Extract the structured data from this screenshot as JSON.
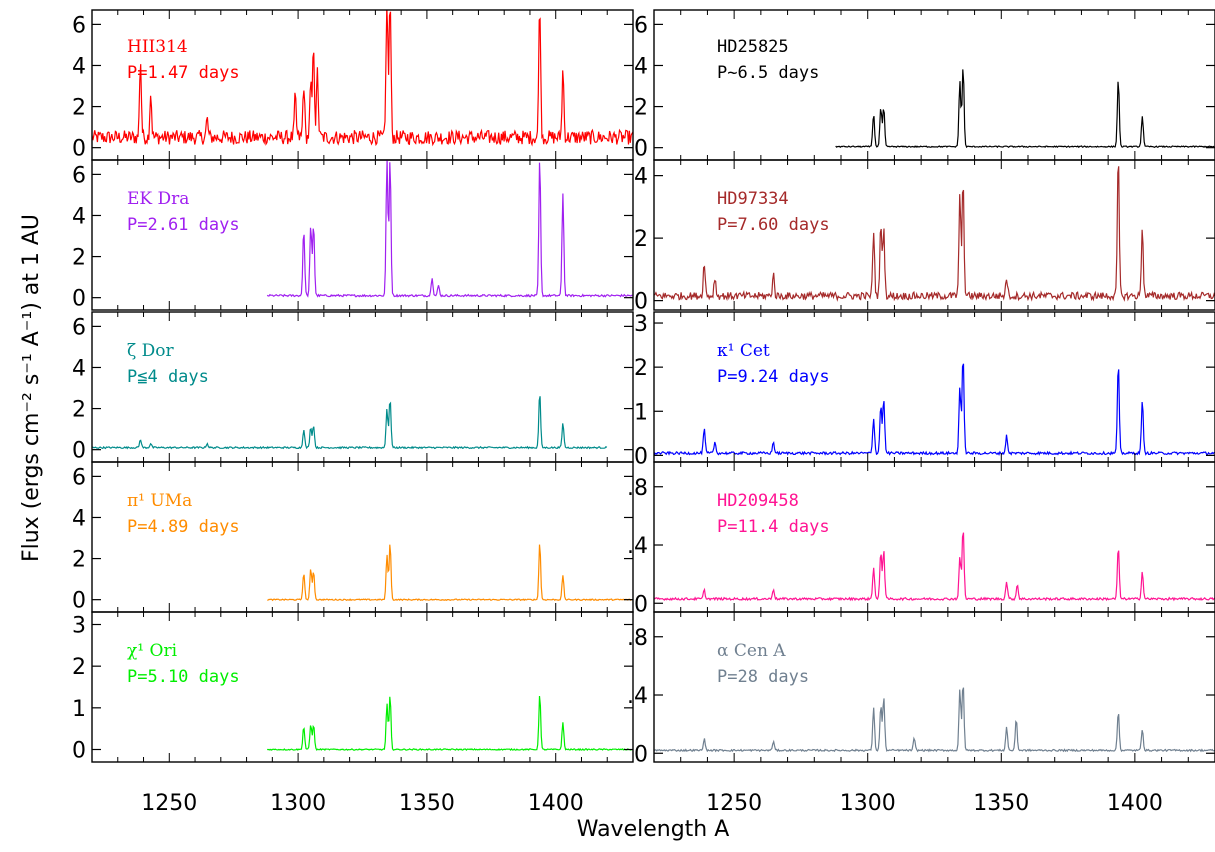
{
  "figure": {
    "ylabel": "Flux (ergs cm⁻² s⁻¹ A⁻¹) at 1 AU",
    "xlabel": "Wavelength A",
    "x_ticks": [
      "1250",
      "1300",
      "1350",
      "1400"
    ]
  },
  "chart_data": [
    {
      "type": "line",
      "column": "left",
      "row": 0,
      "name": "HII314",
      "period": "P=1.47 days",
      "color": "#ff0000",
      "ylim": [
        -0.6,
        6.7
      ],
      "yticks": [
        "0",
        "2",
        "4",
        "6"
      ],
      "x_range": [
        1220,
        1430
      ],
      "noise_amp": 0.35,
      "baseline": 0.5,
      "lines": [
        [
          1238.8,
          3.8
        ],
        [
          1242.8,
          2.2
        ],
        [
          1264.7,
          0.9
        ],
        [
          1298.9,
          2.0
        ],
        [
          1302.2,
          2.6
        ],
        [
          1304.9,
          2.5
        ],
        [
          1306.0,
          4.5
        ],
        [
          1307.5,
          3.2
        ],
        [
          1334.5,
          6.7
        ],
        [
          1335.7,
          6.7
        ],
        [
          1393.8,
          6.7
        ],
        [
          1402.8,
          3.3
        ]
      ]
    },
    {
      "type": "line",
      "column": "left",
      "row": 1,
      "name": "EK Dra",
      "period": "P=2.61 days",
      "color": "#a020f0",
      "ylim": [
        -0.6,
        6.7
      ],
      "yticks": [
        "0",
        "2",
        "4",
        "6"
      ],
      "x_range": [
        1288,
        1430
      ],
      "noise_amp": 0.05,
      "baseline": 0.1,
      "lines": [
        [
          1302.2,
          3.2
        ],
        [
          1304.9,
          3.4
        ],
        [
          1306.0,
          3.5
        ],
        [
          1334.5,
          6.7
        ],
        [
          1335.7,
          6.7
        ],
        [
          1352.0,
          0.9
        ],
        [
          1354.5,
          0.5
        ],
        [
          1393.8,
          6.7
        ],
        [
          1402.8,
          5.0
        ]
      ]
    },
    {
      "type": "line",
      "column": "left",
      "row": 2,
      "name": "ζ Dor",
      "period": "P≦4 days",
      "color": "#008b8b",
      "ylim": [
        -0.6,
        6.7
      ],
      "yticks": [
        "0",
        "2",
        "4",
        "6"
      ],
      "x_range": [
        1220,
        1420
      ],
      "noise_amp": 0.04,
      "baseline": 0.1,
      "lines": [
        [
          1238.8,
          0.4
        ],
        [
          1242.8,
          0.2
        ],
        [
          1264.7,
          0.2
        ],
        [
          1302.2,
          0.9
        ],
        [
          1304.9,
          1.0
        ],
        [
          1306.0,
          1.1
        ],
        [
          1334.5,
          1.9
        ],
        [
          1335.7,
          2.4
        ],
        [
          1393.8,
          2.7
        ],
        [
          1402.8,
          1.2
        ]
      ]
    },
    {
      "type": "line",
      "column": "left",
      "row": 3,
      "name": "π¹ UMa",
      "period": "P=4.89 days",
      "color": "#ff8c00",
      "ylim": [
        -0.6,
        6.7
      ],
      "yticks": [
        "0",
        "2",
        "4",
        "6"
      ],
      "x_range": [
        1288,
        1430
      ],
      "noise_amp": 0.03,
      "baseline": 0.0,
      "lines": [
        [
          1302.2,
          1.3
        ],
        [
          1304.9,
          1.5
        ],
        [
          1306.0,
          1.4
        ],
        [
          1334.5,
          2.2
        ],
        [
          1335.7,
          2.8
        ],
        [
          1393.8,
          2.8
        ],
        [
          1402.8,
          1.2
        ]
      ]
    },
    {
      "type": "line",
      "column": "left",
      "row": 4,
      "name": "χ¹ Ori",
      "period": "P=5.10 days",
      "color": "#00ee00",
      "ylim": [
        -0.3,
        3.3
      ],
      "yticks": [
        "0",
        "1",
        "2",
        "3"
      ],
      "x_range": [
        1288,
        1430
      ],
      "noise_amp": 0.015,
      "baseline": 0.0,
      "lines": [
        [
          1302.2,
          0.55
        ],
        [
          1304.9,
          0.6
        ],
        [
          1306.0,
          0.6
        ],
        [
          1334.5,
          1.1
        ],
        [
          1335.7,
          1.3
        ],
        [
          1393.8,
          1.35
        ],
        [
          1402.8,
          0.65
        ]
      ]
    },
    {
      "type": "line",
      "column": "right",
      "row": 0,
      "name": "HD25825",
      "period": "P~6.5 days",
      "color": "#000000",
      "ylim": [
        -0.6,
        6.7
      ],
      "yticks": [
        "0",
        "2",
        "4",
        "6"
      ],
      "x_range": [
        1288,
        1430
      ],
      "noise_amp": 0.03,
      "baseline": 0.05,
      "lines": [
        [
          1302.2,
          1.6
        ],
        [
          1304.9,
          1.9
        ],
        [
          1306.0,
          1.9
        ],
        [
          1334.5,
          3.2
        ],
        [
          1335.7,
          3.9
        ],
        [
          1393.8,
          3.3
        ],
        [
          1402.8,
          1.5
        ]
      ]
    },
    {
      "type": "line",
      "column": "right",
      "row": 1,
      "name": "HD97334",
      "period": "P=7.60 days",
      "color": "#a52a2a",
      "ylim": [
        -0.3,
        4.5
      ],
      "yticks": [
        "0",
        "2",
        "4"
      ],
      "x_range": [
        1220,
        1430
      ],
      "noise_amp": 0.12,
      "baseline": 0.15,
      "lines": [
        [
          1238.8,
          1.1
        ],
        [
          1242.8,
          0.6
        ],
        [
          1264.7,
          0.7
        ],
        [
          1302.2,
          2.1
        ],
        [
          1304.9,
          2.3
        ],
        [
          1306.0,
          2.2
        ],
        [
          1334.5,
          3.2
        ],
        [
          1335.7,
          3.7
        ],
        [
          1352.0,
          0.6
        ],
        [
          1393.8,
          4.5
        ],
        [
          1402.8,
          2.2
        ]
      ]
    },
    {
      "type": "line",
      "column": "right",
      "row": 2,
      "name": "κ¹ Cet",
      "period": "P=9.24 days",
      "color": "#0000ff",
      "ylim": [
        -0.15,
        3.25
      ],
      "yticks": [
        "0",
        "1",
        "2",
        "3"
      ],
      "x_range": [
        1220,
        1430
      ],
      "noise_amp": 0.03,
      "baseline": 0.05,
      "lines": [
        [
          1238.8,
          0.55
        ],
        [
          1242.8,
          0.25
        ],
        [
          1264.7,
          0.25
        ],
        [
          1302.2,
          0.8
        ],
        [
          1304.9,
          1.1
        ],
        [
          1306.0,
          1.25
        ],
        [
          1334.5,
          1.5
        ],
        [
          1335.7,
          2.25
        ],
        [
          1352.0,
          0.4
        ],
        [
          1393.8,
          2.05
        ],
        [
          1402.8,
          1.2
        ]
      ]
    },
    {
      "type": "line",
      "column": "right",
      "row": 3,
      "name": "HD209458",
      "period": "P=11.4 days",
      "color": "#ff1493",
      "ylim": [
        -0.06,
        0.97
      ],
      "yticks": [
        "0",
        ".4",
        ".8"
      ],
      "x_range": [
        1220,
        1430
      ],
      "noise_amp": 0.008,
      "baseline": 0.03,
      "lines": [
        [
          1238.8,
          0.06
        ],
        [
          1264.7,
          0.07
        ],
        [
          1302.2,
          0.22
        ],
        [
          1304.9,
          0.33
        ],
        [
          1306.0,
          0.34
        ],
        [
          1334.5,
          0.29
        ],
        [
          1335.7,
          0.5
        ],
        [
          1352.0,
          0.12
        ],
        [
          1356.0,
          0.1
        ],
        [
          1393.8,
          0.36
        ],
        [
          1402.8,
          0.19
        ]
      ]
    },
    {
      "type": "line",
      "column": "right",
      "row": 4,
      "name": "α Cen A",
      "period": "P=28 days",
      "color": "#708090",
      "ylim": [
        -0.06,
        0.97
      ],
      "yticks": [
        "0",
        ".4",
        ".8"
      ],
      "x_range": [
        1220,
        1430
      ],
      "noise_amp": 0.006,
      "baseline": 0.02,
      "lines": [
        [
          1238.8,
          0.08
        ],
        [
          1264.7,
          0.06
        ],
        [
          1302.2,
          0.29
        ],
        [
          1304.9,
          0.31
        ],
        [
          1306.0,
          0.37
        ],
        [
          1317.4,
          0.08
        ],
        [
          1334.5,
          0.42
        ],
        [
          1335.7,
          0.47
        ],
        [
          1352.0,
          0.16
        ],
        [
          1355.6,
          0.22
        ],
        [
          1393.8,
          0.27
        ],
        [
          1402.8,
          0.15
        ]
      ]
    }
  ]
}
